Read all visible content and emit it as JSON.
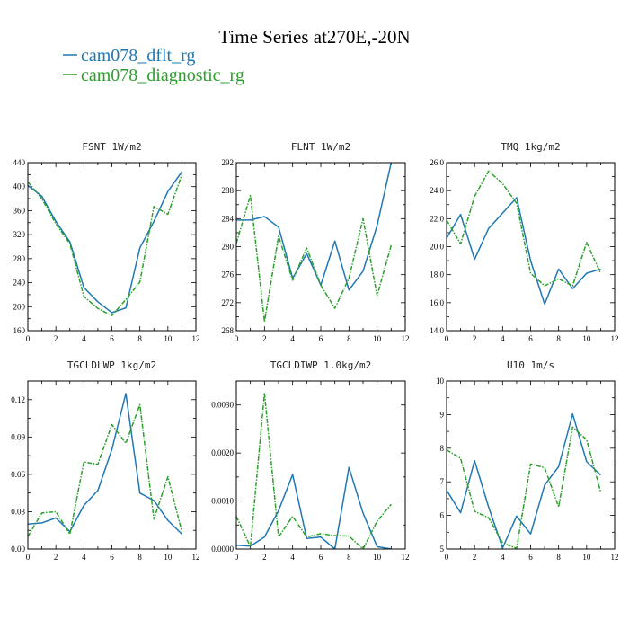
{
  "title": "Time Series at270E,-20N",
  "legend": [
    {
      "name": "cam078_dflt_rg",
      "color": "#1f77b4",
      "dash": false
    },
    {
      "name": "cam078_diagnostic_rg",
      "color": "#2ca02c",
      "dash": true
    }
  ],
  "chart_data": [
    {
      "type": "line",
      "title": "FSNT   1W/m2",
      "xlim": [
        0,
        12
      ],
      "ylim": [
        160,
        440
      ],
      "xticks": [
        0,
        2,
        4,
        6,
        8,
        10,
        12
      ],
      "yticks": [
        160,
        200,
        240,
        280,
        320,
        360,
        400,
        440
      ],
      "x": [
        0,
        1,
        2,
        3,
        4,
        5,
        6,
        7,
        8,
        9,
        10,
        11
      ],
      "series": [
        {
          "name": "cam078_dflt_rg",
          "values": [
            402,
            384,
            342,
            308,
            232,
            208,
            190,
            198,
            298,
            342,
            392,
            425
          ]
        },
        {
          "name": "cam078_diagnostic_rg",
          "values": [
            408,
            380,
            338,
            305,
            217,
            197,
            185,
            212,
            241,
            367,
            354,
            420
          ]
        }
      ]
    },
    {
      "type": "line",
      "title": "FLNT   1W/m2",
      "xlim": [
        0,
        12
      ],
      "ylim": [
        268,
        292
      ],
      "xticks": [
        0,
        2,
        4,
        6,
        8,
        10,
        12
      ],
      "yticks": [
        268,
        272,
        276,
        280,
        284,
        288,
        292
      ],
      "x": [
        0,
        1,
        2,
        3,
        4,
        5,
        6,
        7,
        8,
        9,
        10,
        11
      ],
      "series": [
        {
          "name": "cam078_dflt_rg",
          "values": [
            283.8,
            283.8,
            284.3,
            282.8,
            275.5,
            279.0,
            274.5,
            280.8,
            273.8,
            276.5,
            283.0,
            292.0
          ]
        },
        {
          "name": "cam078_diagnostic_rg",
          "values": [
            280.5,
            287.3,
            269.3,
            281.5,
            275.2,
            279.8,
            274.5,
            271.2,
            275.5,
            284.0,
            273.0,
            280.2
          ]
        }
      ]
    },
    {
      "type": "line",
      "title": "TMQ   1kg/m2",
      "xlim": [
        0,
        12
      ],
      "ylim": [
        14.0,
        26.0
      ],
      "xticks": [
        0,
        2,
        4,
        6,
        8,
        10,
        12
      ],
      "yticks": [
        14.0,
        16.0,
        18.0,
        20.0,
        22.0,
        24.0,
        26.0
      ],
      "yformat": 1,
      "x": [
        0,
        1,
        2,
        3,
        4,
        5,
        6,
        7,
        8,
        9,
        10,
        11
      ],
      "series": [
        {
          "name": "cam078_dflt_rg",
          "values": [
            20.6,
            22.3,
            19.1,
            21.3,
            22.4,
            23.5,
            19.0,
            15.9,
            18.4,
            17.0,
            18.1,
            18.4
          ]
        },
        {
          "name": "cam078_diagnostic_rg",
          "values": [
            21.9,
            20.2,
            23.6,
            25.4,
            24.5,
            23.1,
            18.1,
            17.2,
            17.7,
            17.2,
            20.3,
            18.1
          ]
        }
      ]
    },
    {
      "type": "line",
      "title": "TGCLDLWP   1kg/m2",
      "xlim": [
        0,
        12
      ],
      "ylim": [
        0.0,
        0.135
      ],
      "xticks": [
        0,
        2,
        4,
        6,
        8,
        10,
        12
      ],
      "yticks": [
        0.0,
        0.03,
        0.06,
        0.09,
        0.12
      ],
      "ytick_labels": [
        "0.00",
        "0.03",
        "0.06",
        "0.09",
        "0.12"
      ],
      "x": [
        0,
        1,
        2,
        3,
        4,
        5,
        6,
        7,
        8,
        9,
        10,
        11
      ],
      "series": [
        {
          "name": "cam078_dflt_rg",
          "values": [
            0.02,
            0.021,
            0.025,
            0.014,
            0.035,
            0.047,
            0.08,
            0.125,
            0.045,
            0.039,
            0.023,
            0.012
          ]
        },
        {
          "name": "cam078_diagnostic_rg",
          "values": [
            0.01,
            0.029,
            0.03,
            0.012,
            0.07,
            0.068,
            0.1,
            0.085,
            0.116,
            0.024,
            0.058,
            0.014
          ]
        }
      ]
    },
    {
      "type": "line",
      "title": "TGCLDIWP   1.0kg/m2",
      "xlim": [
        0,
        12
      ],
      "ylim": [
        0.0,
        0.0035
      ],
      "xticks": [
        0,
        2,
        4,
        6,
        8,
        10,
        12
      ],
      "yticks": [
        0.0,
        0.001,
        0.002,
        0.003
      ],
      "ytick_labels": [
        "0.0000",
        "0.0010",
        "0.0020",
        "0.0030"
      ],
      "minor_yticks": [
        0.0005,
        0.0015,
        0.0025
      ],
      "x": [
        0,
        1,
        2,
        3,
        4,
        5,
        6,
        7,
        8,
        9,
        10,
        11
      ],
      "series": [
        {
          "name": "cam078_dflt_rg",
          "values": [
            8e-05,
            6e-05,
            0.00025,
            0.0008,
            0.00155,
            0.00022,
            0.00025,
            0.0,
            0.0017,
            0.00075,
            5e-05,
            0.0
          ]
        },
        {
          "name": "cam078_diagnostic_rg",
          "values": [
            0.00068,
            5e-05,
            0.00325,
            0.00025,
            0.00068,
            0.00025,
            0.00032,
            0.00028,
            0.00027,
            0.0,
            0.00058,
            0.00093
          ]
        }
      ]
    },
    {
      "type": "line",
      "title": "U10   1m/s",
      "xlim": [
        0,
        12
      ],
      "ylim": [
        5,
        10
      ],
      "xticks": [
        0,
        2,
        4,
        6,
        8,
        10,
        12
      ],
      "yticks": [
        5,
        6,
        7,
        8,
        9,
        10
      ],
      "x": [
        0,
        1,
        2,
        3,
        4,
        5,
        6,
        7,
        8,
        9,
        10,
        11
      ],
      "series": [
        {
          "name": "cam078_dflt_rg",
          "values": [
            6.75,
            6.08,
            7.63,
            6.25,
            5.03,
            5.98,
            5.45,
            6.9,
            7.45,
            9.02,
            7.6,
            7.2
          ]
        },
        {
          "name": "cam078_diagnostic_rg",
          "values": [
            7.95,
            7.7,
            6.12,
            5.93,
            5.18,
            5.02,
            7.53,
            7.42,
            6.25,
            8.63,
            8.25,
            6.7
          ]
        }
      ]
    }
  ]
}
